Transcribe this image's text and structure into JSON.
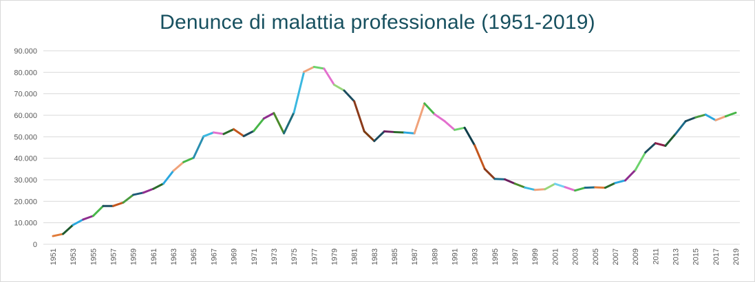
{
  "chart_data": {
    "type": "line",
    "title": "Denunce di malattia professionale (1951-2019)",
    "xlabel": "",
    "ylabel": "",
    "ylim": [
      0,
      90000
    ],
    "y_ticks": [
      0,
      10000,
      20000,
      30000,
      40000,
      50000,
      60000,
      70000,
      80000,
      90000
    ],
    "y_tick_labels": [
      "0",
      "10.000",
      "20.000",
      "30.000",
      "40.000",
      "50.000",
      "60.000",
      "70.000",
      "80.000",
      "90.000"
    ],
    "x_tick_labels": [
      "1951",
      "1953",
      "1955",
      "1957",
      "1959",
      "1961",
      "1963",
      "1965",
      "1967",
      "1969",
      "1971",
      "1973",
      "1975",
      "1977",
      "1979",
      "1981",
      "1983",
      "1985",
      "1987",
      "1989",
      "1991",
      "1993",
      "1995",
      "1997",
      "1999",
      "2001",
      "2003",
      "2005",
      "2007",
      "2009",
      "2011",
      "2013",
      "2015",
      "2017",
      "2019"
    ],
    "grid": true,
    "legend": "none",
    "x": [
      1951,
      1952,
      1953,
      1954,
      1955,
      1956,
      1957,
      1958,
      1959,
      1960,
      1961,
      1962,
      1963,
      1964,
      1965,
      1966,
      1967,
      1968,
      1969,
      1970,
      1971,
      1972,
      1973,
      1974,
      1975,
      1976,
      1977,
      1978,
      1979,
      1980,
      1981,
      1982,
      1983,
      1984,
      1985,
      1986,
      1987,
      1988,
      1989,
      1990,
      1991,
      1992,
      1993,
      1994,
      1995,
      1996,
      1997,
      1998,
      1999,
      2000,
      2001,
      2002,
      2003,
      2004,
      2005,
      2006,
      2007,
      2008,
      2009,
      2010,
      2011,
      2012,
      2013,
      2014,
      2015,
      2016,
      2017,
      2018,
      2019
    ],
    "values": [
      3800,
      4800,
      9000,
      11500,
      13200,
      17800,
      17800,
      19400,
      23000,
      24000,
      25800,
      28200,
      34200,
      38200,
      40200,
      50200,
      52000,
      51300,
      53500,
      50300,
      52700,
      58500,
      61000,
      51600,
      61300,
      80200,
      82500,
      81700,
      74200,
      71500,
      66500,
      52500,
      48000,
      52500,
      52200,
      52000,
      51600,
      65500,
      60500,
      57300,
      53200,
      54200,
      46000,
      35000,
      30400,
      30200,
      28200,
      26400,
      25300,
      25600,
      28100,
      26600,
      25000,
      26300,
      26500,
      26300,
      28500,
      29700,
      34500,
      42700,
      47000,
      45800,
      51300,
      57200,
      59000,
      60300,
      57700,
      59500,
      61200
    ],
    "segment_colors": [
      "#e07b39",
      "#1e5a2e",
      "#2aa7df",
      "#8f2d8e",
      "#47b648",
      "#1b4c5f",
      "#c4561d",
      "#4a9b3f",
      "#1e5a7a",
      "#8f2d8e",
      "#2a6b2a",
      "#2aa7df",
      "#f0a27a",
      "#47b648",
      "#2a8fb0",
      "#3bb8e0",
      "#e36fce",
      "#2a6b2a",
      "#c4561d",
      "#1b4c5f",
      "#47b648",
      "#8f2d8e",
      "#4a8a2a",
      "#1e6b7a",
      "#3bb8e0",
      "#f0a27a",
      "#6cd36c",
      "#e36fce",
      "#98d67a",
      "#1b4c5f",
      "#8b3a1a",
      "#7b3a10",
      "#1b4c5f",
      "#6b1f5e",
      "#2a6b2a",
      "#2aa7df",
      "#f0a27a",
      "#47b648",
      "#e36fce",
      "#e36fce",
      "#6cd36c",
      "#0f3d4a",
      "#c4561d",
      "#8b3a1a",
      "#1b6b8a",
      "#6b1f5e",
      "#4a8a2a",
      "#3bb8e0",
      "#f0a27a",
      "#98d67a",
      "#6fd0f0",
      "#e36fce",
      "#47b648",
      "#1b6b8a",
      "#e07b39",
      "#2a6b2a",
      "#2aa7df",
      "#8f2d8e",
      "#6cd36c",
      "#1b4c5f",
      "#8b1f4a",
      "#1e5a2e",
      "#1b6b8a",
      "#1b4c5f",
      "#4a9b3f",
      "#2aa7df",
      "#f0a27a",
      "#47b648"
    ]
  }
}
